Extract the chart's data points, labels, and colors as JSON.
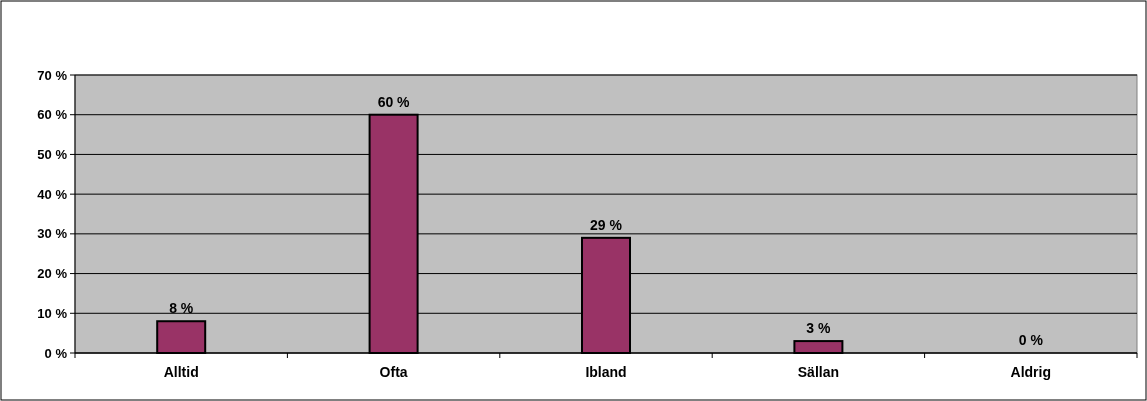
{
  "chart_data": {
    "type": "bar",
    "categories": [
      "Alltid",
      "Ofta",
      "Ibland",
      "Sällan",
      "Aldrig"
    ],
    "values": [
      8,
      60,
      29,
      3,
      0
    ],
    "value_labels": [
      "8 %",
      "60 %",
      "29 %",
      "3 %",
      "0 %"
    ],
    "color": "#993366",
    "ylim": [
      0,
      70
    ],
    "yticks": [
      {
        "value": 0,
        "label": "0 %"
      },
      {
        "value": 10,
        "label": "10 %"
      },
      {
        "value": 20,
        "label": "20 %"
      },
      {
        "value": 30,
        "label": "30 %"
      },
      {
        "value": 40,
        "label": "40 %"
      },
      {
        "value": 50,
        "label": "50 %"
      },
      {
        "value": 60,
        "label": "60 %"
      },
      {
        "value": 70,
        "label": "70 %"
      }
    ],
    "grid": "y"
  }
}
